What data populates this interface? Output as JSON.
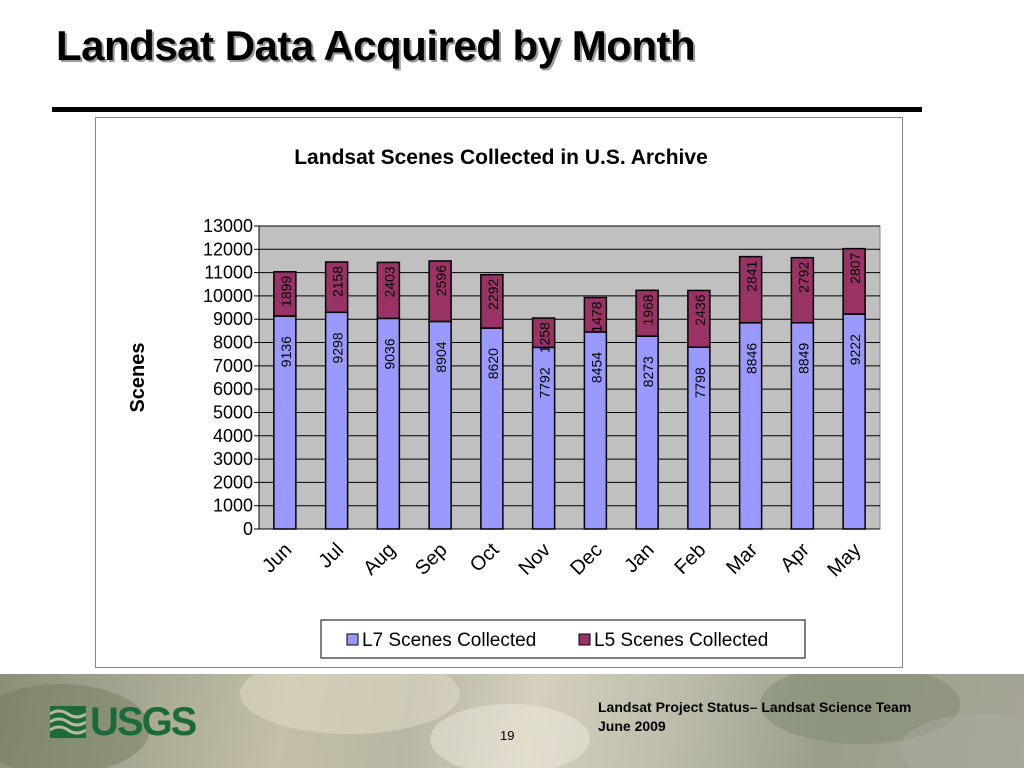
{
  "slide": {
    "title": "Landsat Data Acquired by Month",
    "footer": {
      "line1": "Landsat Project Status– Landsat Science Team",
      "line2": "June 2009",
      "page_number": "19",
      "logo_text": "USGS"
    }
  },
  "colors": {
    "l7": "#9999ff",
    "l5": "#993366",
    "plot_bg": "#c0c0c0",
    "logo": "#1b6b3a"
  },
  "chart_data": {
    "type": "bar",
    "stacked": true,
    "title": "Landsat Scenes  Collected in U.S. Archive",
    "xlabel": "",
    "ylabel": "Scenes",
    "ylim": [
      0,
      13000
    ],
    "yticks": [
      0,
      1000,
      2000,
      3000,
      4000,
      5000,
      6000,
      7000,
      8000,
      9000,
      10000,
      11000,
      12000,
      13000
    ],
    "grid": true,
    "legend": "bottom",
    "categories": [
      "Jun",
      "Jul",
      "Aug",
      "Sep",
      "Oct",
      "Nov",
      "Dec",
      "Jan",
      "Feb",
      "Mar",
      "Apr",
      "May"
    ],
    "series": [
      {
        "name": "L7 Scenes Collected",
        "color": "#9999ff",
        "values": [
          9136,
          9298,
          9036,
          8904,
          8620,
          7792,
          8454,
          8273,
          7798,
          8846,
          8849,
          9222
        ]
      },
      {
        "name": "L5 Scenes Collected",
        "color": "#993366",
        "values": [
          1899,
          2158,
          2403,
          2596,
          2292,
          1258,
          1478,
          1968,
          2436,
          2841,
          2792,
          2807
        ]
      }
    ]
  }
}
